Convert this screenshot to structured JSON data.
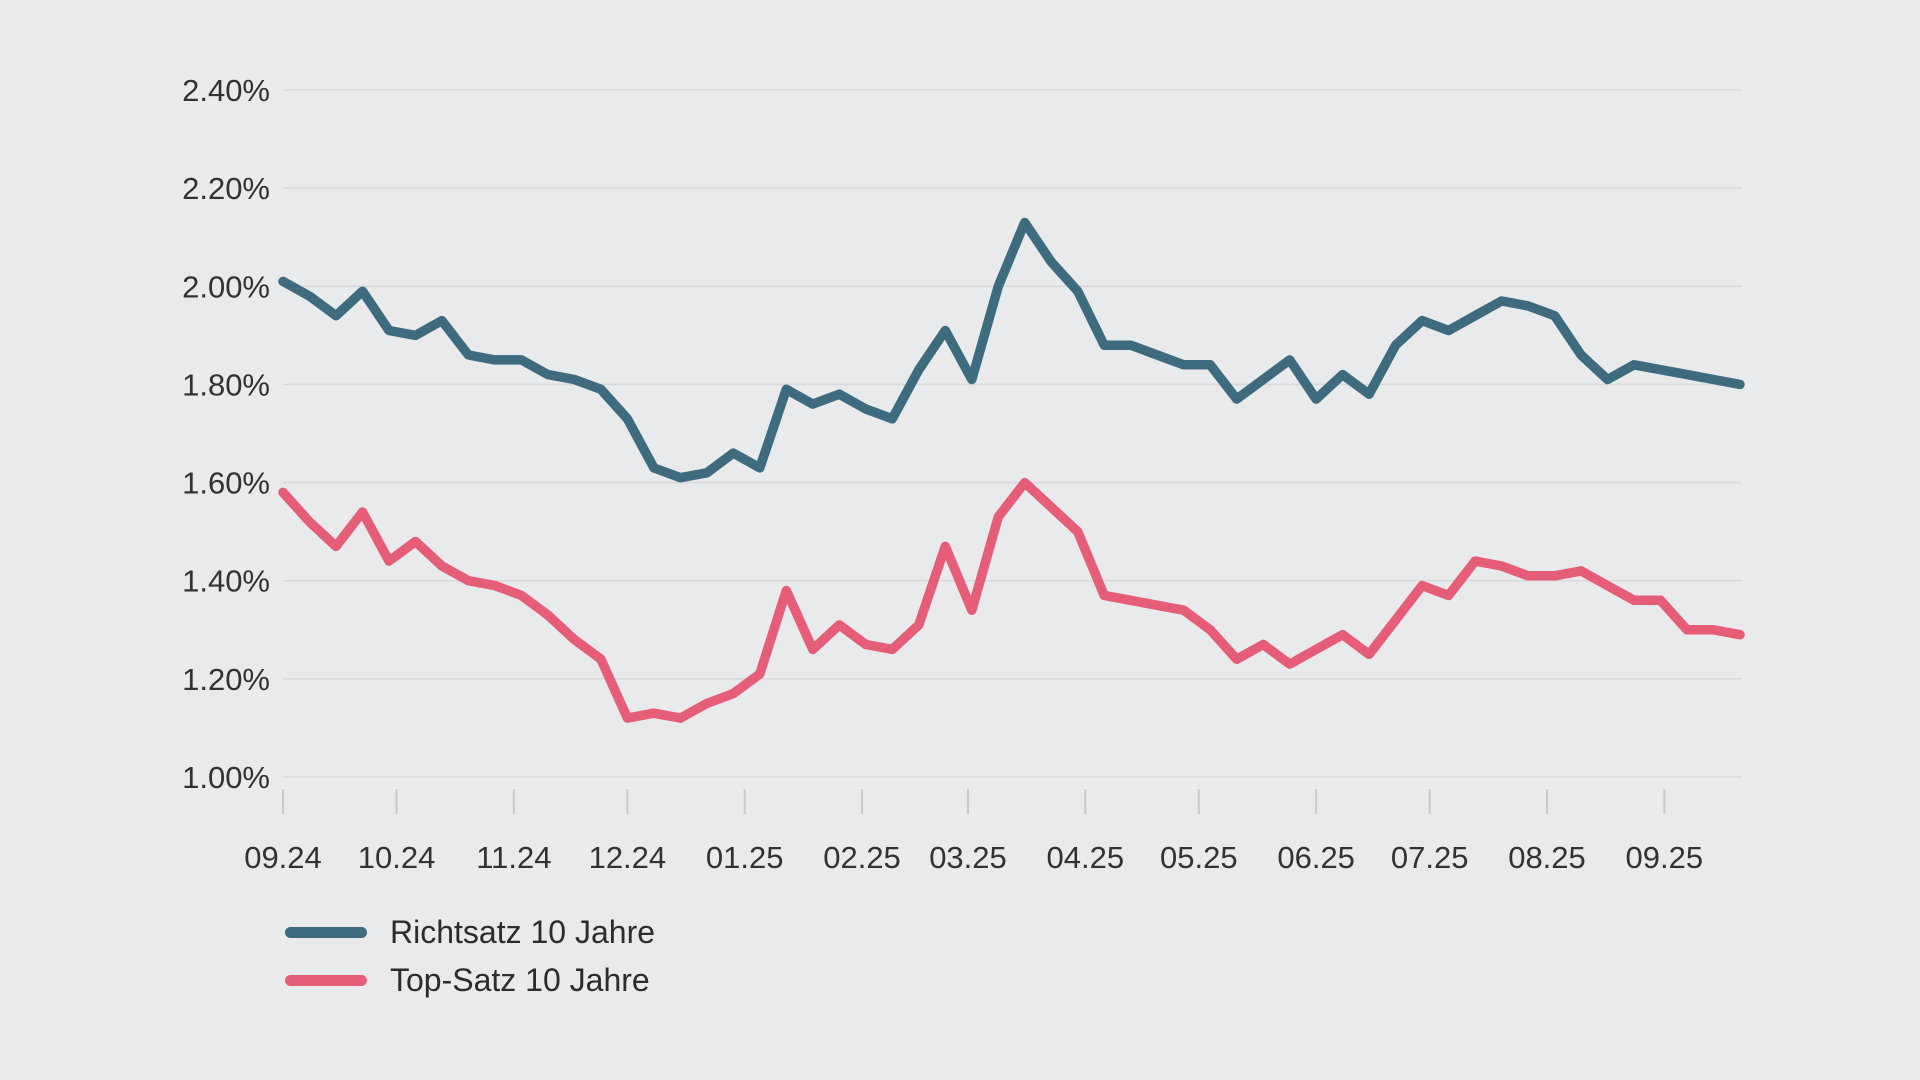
{
  "chart_data": {
    "type": "line",
    "title": "",
    "grid": true,
    "legend_position": "bottom-left",
    "y_axis": {
      "tick_values": [
        2.4,
        2.2,
        2.0,
        1.8,
        1.6,
        1.4,
        1.2,
        1.0
      ],
      "tick_labels": [
        "2.40%",
        "2.20%",
        "2.00%",
        "1.80%",
        "1.60%",
        "1.40%",
        "1.20%",
        "1.00%"
      ],
      "ylim": [
        1.0,
        2.4
      ],
      "unit": "%"
    },
    "x_axis": {
      "labels": [
        "09.24",
        "10.24",
        "11.24",
        "12.24",
        "01.25",
        "02.25",
        "03.25",
        "04.25",
        "05.25",
        "06.25",
        "07.25",
        "08.25",
        "09.25"
      ],
      "label_day_offsets": [
        0,
        30,
        61,
        91,
        122,
        153,
        181,
        212,
        242,
        273,
        303,
        334,
        365
      ],
      "span_days": 385,
      "point_interval_days": 7
    },
    "series": [
      {
        "name": "Richtsatz 10 Jahre",
        "color": "#3e6b7e",
        "values": [
          2.01,
          1.98,
          1.94,
          1.99,
          1.91,
          1.9,
          1.93,
          1.86,
          1.85,
          1.85,
          1.82,
          1.81,
          1.79,
          1.73,
          1.63,
          1.61,
          1.62,
          1.66,
          1.63,
          1.79,
          1.76,
          1.78,
          1.75,
          1.73,
          1.83,
          1.91,
          1.81,
          2.0,
          2.13,
          2.05,
          1.99,
          1.88,
          1.88,
          1.86,
          1.84,
          1.84,
          1.77,
          1.81,
          1.85,
          1.77,
          1.82,
          1.78,
          1.88,
          1.93,
          1.91,
          1.94,
          1.97,
          1.96,
          1.94,
          1.86,
          1.81,
          1.84,
          1.83,
          1.82,
          1.81,
          1.8
        ]
      },
      {
        "name": "Top-Satz 10 Jahre",
        "color": "#e55d77",
        "values": [
          1.58,
          1.52,
          1.47,
          1.54,
          1.44,
          1.48,
          1.43,
          1.4,
          1.39,
          1.37,
          1.33,
          1.28,
          1.24,
          1.12,
          1.13,
          1.12,
          1.15,
          1.17,
          1.21,
          1.38,
          1.26,
          1.31,
          1.27,
          1.26,
          1.31,
          1.47,
          1.34,
          1.53,
          1.6,
          1.55,
          1.5,
          1.37,
          1.36,
          1.35,
          1.34,
          1.3,
          1.24,
          1.27,
          1.23,
          1.26,
          1.29,
          1.25,
          1.32,
          1.39,
          1.37,
          1.44,
          1.43,
          1.41,
          1.41,
          1.42,
          1.39,
          1.36,
          1.36,
          1.3,
          1.3,
          1.29
        ]
      }
    ]
  },
  "colors": {
    "background": "#e9eaec",
    "gridline": "#d8d9db",
    "tick_mark": "#c9cacd",
    "axis_text": "#323232",
    "legend_text": "#2c2c2c"
  }
}
